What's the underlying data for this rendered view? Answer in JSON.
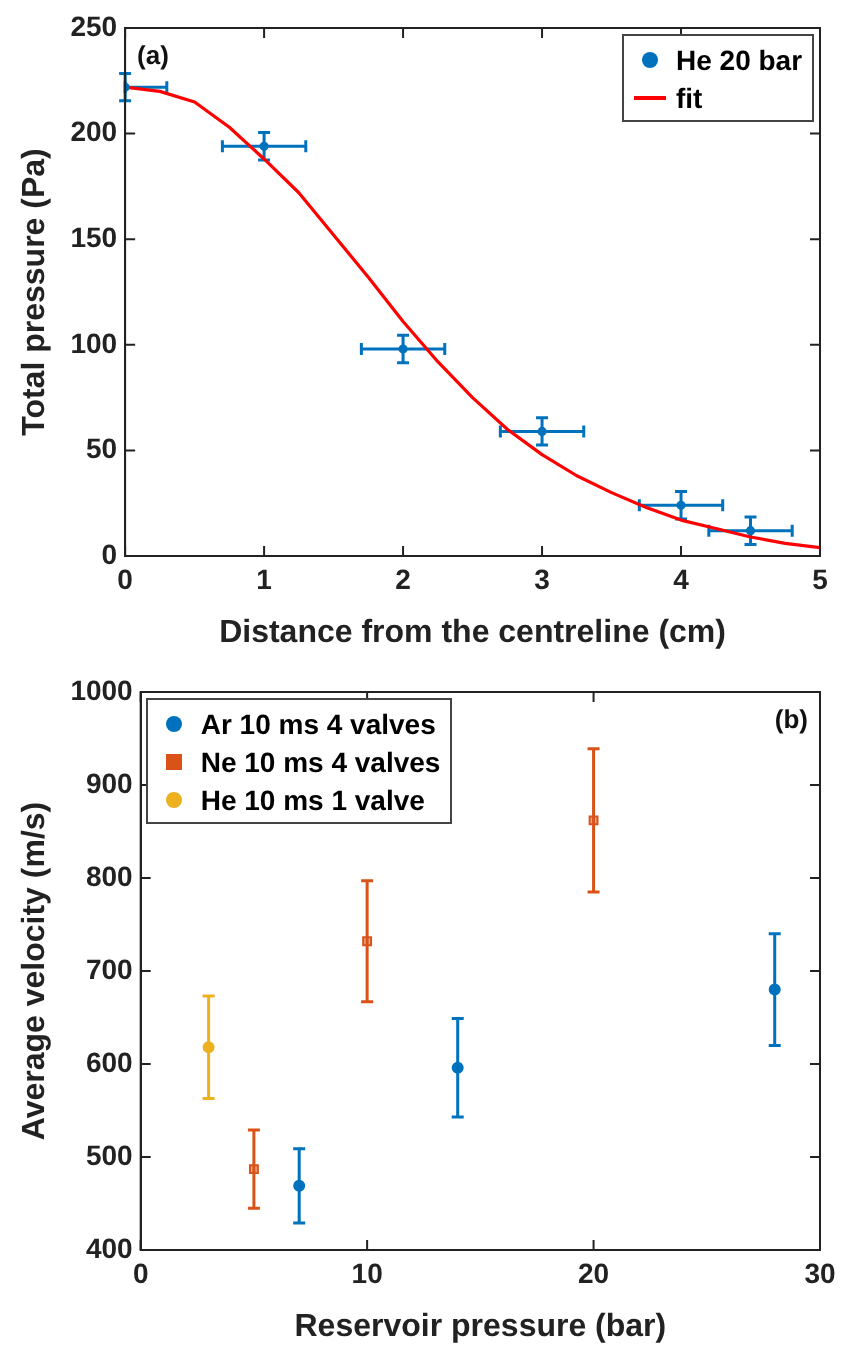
{
  "chart_data": [
    {
      "type": "scatter",
      "xlabel": "Distance from the centreline (cm)",
      "ylabel": "Total pressure (Pa)",
      "annotations": [
        "(a)"
      ],
      "xlim": [
        0,
        5
      ],
      "xticks": [
        0,
        1,
        2,
        3,
        4,
        5
      ],
      "ylim": [
        0,
        250
      ],
      "yticks": [
        0,
        50,
        100,
        150,
        200,
        250
      ],
      "grid": false,
      "legend": "top right",
      "series": [
        {
          "name": "He 20 bar",
          "color": "#0072bd",
          "marker": "circle",
          "x": [
            0,
            1,
            2,
            3,
            4,
            4.5
          ],
          "values": [
            222,
            194,
            98,
            59,
            24,
            12
          ],
          "errors": [
            6.5,
            6.5,
            6.5,
            6.5,
            6.5,
            6.5
          ],
          "xerrors": [
            [
              0,
              0.3
            ],
            0.3,
            0.3,
            0.3,
            0.3,
            0.3
          ]
        },
        {
          "name": "fit",
          "type": "line",
          "color": "#ff0000",
          "line_style": "solid",
          "x": [
            0,
            0.25,
            0.5,
            0.75,
            1,
            1.25,
            1.5,
            1.75,
            2,
            2.25,
            2.5,
            2.75,
            3,
            3.25,
            3.5,
            3.75,
            4,
            4.25,
            4.5,
            4.75,
            5
          ],
          "values": [
            222,
            220,
            215,
            203,
            188,
            172,
            152,
            132,
            111,
            92,
            75,
            60,
            48,
            38,
            30,
            23,
            17,
            13,
            9,
            6,
            4
          ]
        }
      ]
    },
    {
      "type": "scatter",
      "xlabel": "Reservoir pressure (bar)",
      "ylabel": "Average velocity (m/s)",
      "annotations": [
        "(b)"
      ],
      "xlim": [
        0,
        30
      ],
      "xticks": [
        0,
        10,
        20,
        30
      ],
      "ylim": [
        400,
        1000
      ],
      "yticks": [
        400,
        500,
        600,
        700,
        800,
        900,
        1000
      ],
      "grid": false,
      "legend": "top left",
      "series": [
        {
          "name": "Ar 10 ms 4 valves",
          "color": "#0072bd",
          "marker": "circle",
          "x": [
            7,
            14,
            28
          ],
          "values": [
            469,
            596,
            680
          ],
          "errors": [
            40,
            53,
            60
          ]
        },
        {
          "name": "Ne 10 ms 4 valves",
          "color": "#d95319",
          "marker": "square",
          "x": [
            5,
            10,
            20
          ],
          "values": [
            487,
            732,
            862
          ],
          "errors": [
            42,
            65,
            77
          ]
        },
        {
          "name": "He 10 ms 1 valve",
          "color": "#edb120",
          "marker": "circle",
          "x": [
            3
          ],
          "values": [
            618
          ],
          "errors": [
            55
          ]
        }
      ]
    }
  ]
}
